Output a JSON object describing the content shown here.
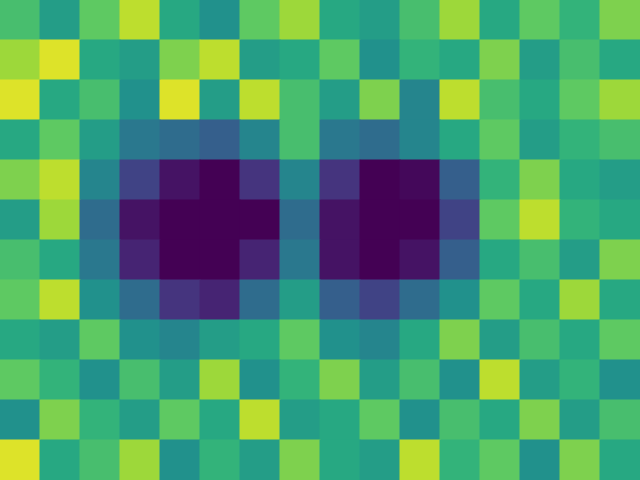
{
  "chart_data": {
    "type": "heatmap",
    "color": "viridis",
    "tick_labels": false,
    "color_range": [
      0,
      1
    ],
    "cells": [
      [
        0.7,
        0.55,
        0.75,
        0.9,
        0.6,
        0.5,
        0.75,
        0.85,
        0.6,
        0.55,
        0.7,
        0.85,
        0.6,
        0.75,
        0.65,
        0.8
      ],
      [
        0.85,
        0.95,
        0.6,
        0.55,
        0.8,
        0.9,
        0.55,
        0.6,
        0.75,
        0.5,
        0.65,
        0.6,
        0.8,
        0.55,
        0.7,
        0.6
      ],
      [
        0.95,
        0.6,
        0.7,
        0.5,
        0.95,
        0.55,
        0.9,
        0.7,
        0.55,
        0.8,
        0.45,
        0.9,
        0.7,
        0.6,
        0.75,
        0.85
      ],
      [
        0.6,
        0.75,
        0.55,
        0.4,
        0.35,
        0.3,
        0.45,
        0.7,
        0.4,
        0.35,
        0.45,
        0.6,
        0.75,
        0.55,
        0.65,
        0.7
      ],
      [
        0.8,
        0.9,
        0.45,
        0.2,
        0.05,
        0.0,
        0.15,
        0.45,
        0.15,
        0.0,
        0.02,
        0.3,
        0.65,
        0.8,
        0.6,
        0.55
      ],
      [
        0.55,
        0.85,
        0.35,
        0.05,
        0.0,
        0.0,
        0.0,
        0.35,
        0.05,
        0.0,
        0.0,
        0.2,
        0.75,
        0.9,
        0.65,
        0.6
      ],
      [
        0.7,
        0.6,
        0.4,
        0.1,
        0.0,
        0.0,
        0.1,
        0.4,
        0.05,
        0.0,
        0.05,
        0.3,
        0.6,
        0.7,
        0.55,
        0.8
      ],
      [
        0.75,
        0.9,
        0.5,
        0.35,
        0.15,
        0.1,
        0.35,
        0.55,
        0.3,
        0.2,
        0.35,
        0.5,
        0.75,
        0.6,
        0.85,
        0.6
      ],
      [
        0.6,
        0.55,
        0.75,
        0.5,
        0.45,
        0.55,
        0.6,
        0.75,
        0.5,
        0.45,
        0.6,
        0.8,
        0.55,
        0.7,
        0.6,
        0.75
      ],
      [
        0.75,
        0.65,
        0.5,
        0.7,
        0.55,
        0.85,
        0.5,
        0.65,
        0.8,
        0.55,
        0.7,
        0.5,
        0.9,
        0.55,
        0.65,
        0.5
      ],
      [
        0.5,
        0.8,
        0.65,
        0.55,
        0.75,
        0.6,
        0.9,
        0.55,
        0.6,
        0.75,
        0.5,
        0.7,
        0.6,
        0.8,
        0.55,
        0.7
      ],
      [
        0.95,
        0.6,
        0.7,
        0.85,
        0.5,
        0.65,
        0.55,
        0.8,
        0.6,
        0.55,
        0.9,
        0.65,
        0.75,
        0.5,
        0.8,
        0.6
      ]
    ]
  }
}
